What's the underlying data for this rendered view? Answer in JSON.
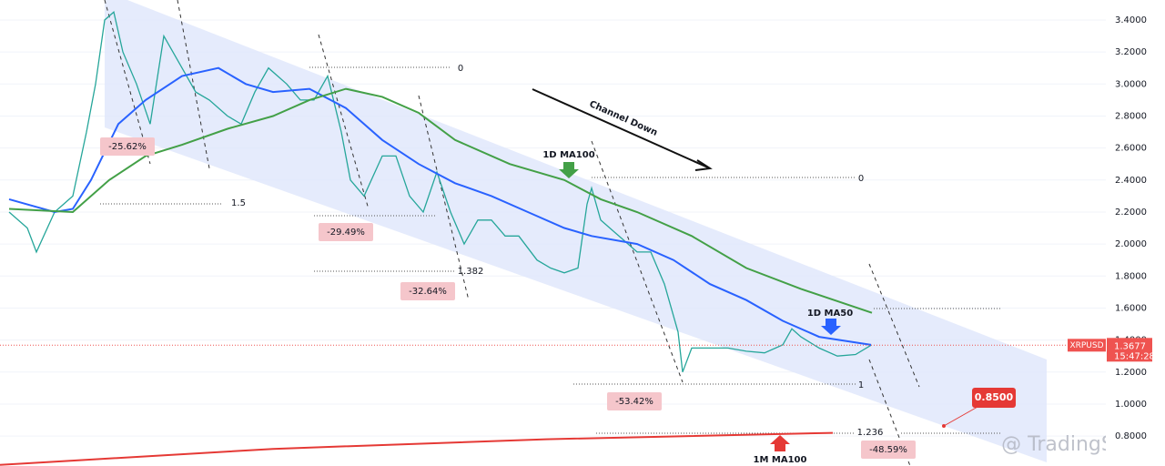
{
  "chart_data": {
    "type": "line",
    "ylim": [
      0.613,
      3.525
    ],
    "xlim": [
      0,
      121.5
    ],
    "grid": true,
    "yticks": [
      {
        "value": 0.8,
        "label": "0.8000"
      },
      {
        "value": 1.0,
        "label": "1.0000"
      },
      {
        "value": 1.2,
        "label": "1.2000"
      },
      {
        "value": 1.4,
        "label": "1.4000"
      },
      {
        "value": 1.6,
        "label": "1.6000"
      },
      {
        "value": 1.8,
        "label": "1.8000"
      },
      {
        "value": 2.0,
        "label": "2.0000"
      },
      {
        "value": 2.2,
        "label": "2.2000"
      },
      {
        "value": 2.4,
        "label": "2.4000"
      },
      {
        "value": 2.6,
        "label": "2.6000"
      },
      {
        "value": 2.8,
        "label": "2.8000"
      },
      {
        "value": 3.0,
        "label": "3.0000"
      },
      {
        "value": 3.2,
        "label": "3.2000"
      },
      {
        "value": 3.4,
        "label": "3.4000"
      }
    ],
    "series": [
      {
        "name": "XRPUSD",
        "color": "#26a69a",
        "x": [
          1,
          3,
          4,
          6,
          8,
          9.5,
          10.5,
          11.5,
          12.5,
          13.5,
          15,
          16.5,
          18,
          20,
          21.5,
          23,
          25,
          26.5,
          28,
          29.5,
          31.5,
          33,
          34.5,
          36,
          37.5,
          38.5,
          40,
          42,
          43.5,
          45,
          46.5,
          48,
          49.5,
          51,
          52.5,
          54,
          55.5,
          57,
          59,
          60.5,
          62,
          63.5,
          64.5,
          65,
          66,
          68,
          70,
          71.5,
          73,
          74.5,
          75,
          76,
          78,
          80,
          82,
          84,
          86,
          87,
          88,
          90,
          92,
          94,
          95.7
        ],
        "values": [
          2.2,
          2.1,
          1.95,
          2.2,
          2.3,
          2.7,
          3.0,
          3.4,
          3.45,
          3.2,
          3.0,
          2.75,
          3.3,
          3.1,
          2.95,
          2.9,
          2.8,
          2.75,
          2.95,
          3.1,
          3.0,
          2.9,
          2.9,
          3.05,
          2.7,
          2.4,
          2.3,
          2.55,
          2.55,
          2.3,
          2.2,
          2.45,
          2.2,
          2.0,
          2.15,
          2.15,
          2.05,
          2.05,
          1.9,
          1.85,
          1.82,
          1.85,
          2.25,
          2.35,
          2.15,
          2.05,
          1.95,
          1.95,
          1.75,
          1.45,
          1.2,
          1.35,
          1.35,
          1.35,
          1.33,
          1.32,
          1.37,
          1.47,
          1.42,
          1.35,
          1.3,
          1.31,
          1.3677
        ]
      },
      {
        "name": "1D MA50",
        "color": "#2962ff",
        "x": [
          1,
          6,
          8,
          10,
          13,
          16,
          20,
          24,
          27,
          30,
          34,
          38,
          42,
          46,
          50,
          54,
          58,
          62,
          65,
          70,
          74,
          78,
          82,
          86,
          90,
          95.7
        ],
        "values": [
          2.28,
          2.2,
          2.22,
          2.4,
          2.75,
          2.9,
          3.05,
          3.1,
          3.0,
          2.95,
          2.97,
          2.85,
          2.65,
          2.5,
          2.38,
          2.3,
          2.2,
          2.1,
          2.05,
          2.0,
          1.9,
          1.75,
          1.65,
          1.52,
          1.42,
          1.37
        ]
      },
      {
        "name": "1D MA100",
        "color": "#43a047",
        "x": [
          1,
          8,
          12,
          16,
          20,
          25,
          30,
          34,
          38,
          42,
          46,
          50,
          56,
          62,
          66,
          70,
          76,
          82,
          88,
          95.8
        ],
        "values": [
          2.22,
          2.2,
          2.4,
          2.55,
          2.62,
          2.72,
          2.8,
          2.9,
          2.97,
          2.92,
          2.82,
          2.65,
          2.5,
          2.4,
          2.28,
          2.2,
          2.05,
          1.85,
          1.72,
          1.57
        ]
      },
      {
        "name": "1M MA100",
        "color": "#e53935",
        "x": [
          0,
          30,
          60,
          91.5
        ],
        "values": [
          0.62,
          0.72,
          0.78,
          0.82
        ]
      }
    ],
    "price_tag": {
      "value": 1.3677,
      "label": "1.3677",
      "time": "15:47:28"
    },
    "target": "0.8500",
    "annotations": [
      "-25.62%",
      "-29.49%",
      "-32.64%",
      "-53.42%",
      "-48.59%",
      "1.5",
      "0",
      "0",
      "1",
      "1.236",
      "1.382",
      "Channel Down"
    ],
    "watermark": "@ TradingShot"
  }
}
